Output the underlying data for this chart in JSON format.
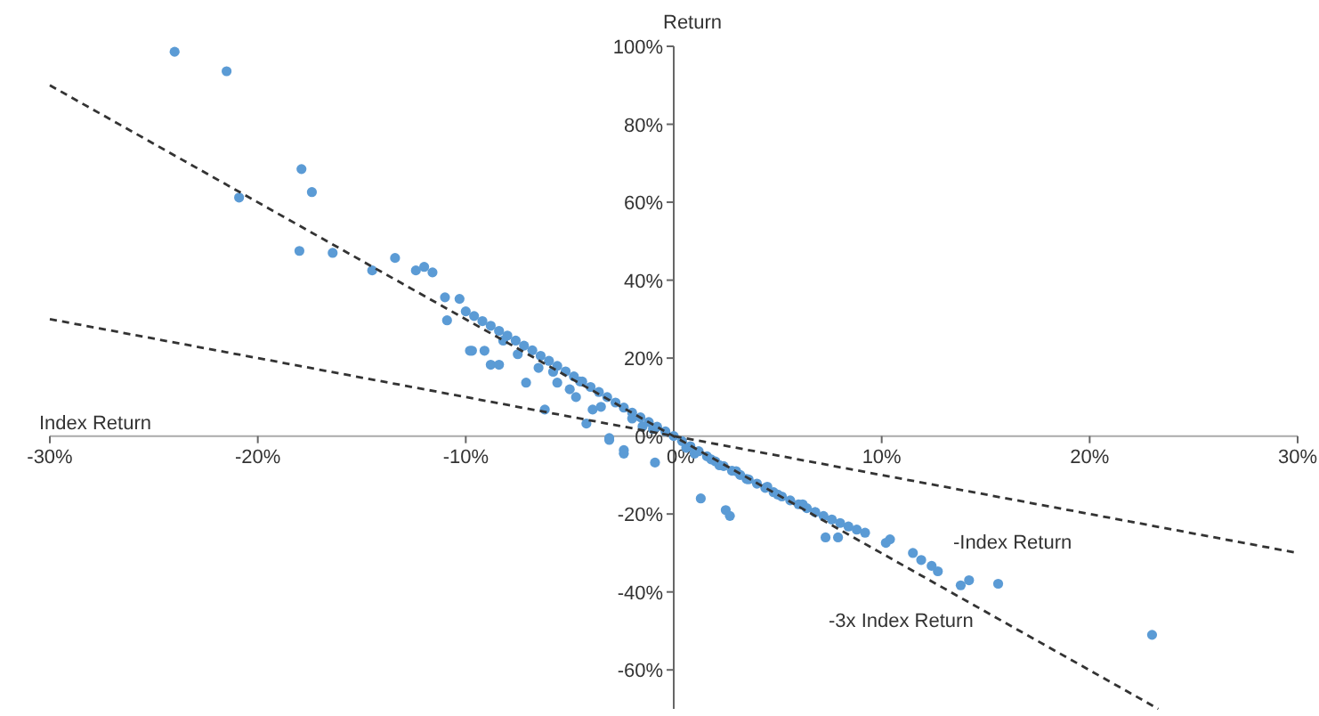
{
  "chart_data": {
    "type": "scatter",
    "xlabel": "Index Return",
    "ylabel": "Return",
    "xlim": [
      -30,
      30
    ],
    "ylim": [
      -70,
      100
    ],
    "xticks": [
      {
        "value": -30,
        "label": "-30%"
      },
      {
        "value": -20,
        "label": "-20%"
      },
      {
        "value": -10,
        "label": "-10%"
      },
      {
        "value": 0,
        "label": "0%"
      },
      {
        "value": 10,
        "label": "10%"
      },
      {
        "value": 20,
        "label": "20%"
      },
      {
        "value": 30,
        "label": "30%"
      }
    ],
    "yticks": [
      {
        "value": -60,
        "label": "-60%"
      },
      {
        "value": -40,
        "label": "-40%"
      },
      {
        "value": -20,
        "label": "-20%"
      },
      {
        "value": 0,
        "label": "0%"
      },
      {
        "value": 20,
        "label": "20%"
      },
      {
        "value": 40,
        "label": "40%"
      },
      {
        "value": 60,
        "label": "60%"
      },
      {
        "value": 80,
        "label": "80%"
      },
      {
        "value": 100,
        "label": "100%"
      }
    ],
    "grid": false,
    "marker": "circle",
    "series": [
      {
        "color": "#5b9bd5",
        "x": [
          -24.0,
          -21.5,
          -20.9,
          -17.9,
          -17.4,
          -18.0,
          -16.4,
          -14.5,
          -13.4,
          -12.4,
          -12.0,
          -11.6,
          -11.0,
          -10.3,
          -10.9,
          -9.7,
          -9.1,
          -8.8,
          -8.4,
          -7.1,
          -6.2,
          -9.8,
          -5.6,
          -4.7,
          -3.9,
          -4.2,
          -3.1,
          -2.4,
          -3.1,
          -2.4,
          -0.9,
          1.3,
          2.5,
          2.7,
          7.3,
          7.9,
          10.2,
          10.4,
          11.5,
          11.9,
          12.4,
          12.7,
          13.8,
          14.2,
          15.6,
          23.0,
          -10.0,
          -9.6,
          -9.2,
          -8.8,
          -8.4,
          -8.0,
          -7.6,
          -7.2,
          -6.8,
          -6.4,
          -6.0,
          -5.6,
          -5.2,
          -4.8,
          -4.4,
          -4.0,
          -3.6,
          -3.2,
          -2.8,
          -2.4,
          -2.0,
          -1.6,
          -1.2,
          -0.8,
          -0.4,
          0.0,
          0.4,
          0.8,
          1.2,
          1.6,
          2.0,
          2.4,
          2.8,
          3.2,
          3.6,
          4.0,
          4.4,
          4.8,
          5.2,
          5.6,
          6.0,
          6.4,
          6.8,
          7.2,
          7.6,
          8.0,
          8.4,
          8.8,
          9.2,
          -7.5,
          -6.5,
          -5.0,
          -3.5,
          -1.5,
          0.6,
          1.8,
          3.0,
          4.5,
          6.2,
          -8.2,
          -5.8,
          -4.5,
          -2.0,
          -1.0,
          1.0,
          2.2,
          3.5,
          5.0,
          6.8
        ],
        "values": [
          98.6,
          93.6,
          61.2,
          68.5,
          62.6,
          47.5,
          47.0,
          42.5,
          45.7,
          42.5,
          43.4,
          42.0,
          35.6,
          35.2,
          29.7,
          21.9,
          21.9,
          18.3,
          18.3,
          13.7,
          6.8,
          21.9,
          13.7,
          10.0,
          6.8,
          3.2,
          -0.5,
          -3.6,
          -1.0,
          -4.5,
          -6.8,
          -16.0,
          -19.0,
          -20.5,
          -26.0,
          -26.0,
          -27.4,
          -26.5,
          -30.0,
          -31.8,
          -33.3,
          -34.7,
          -38.3,
          -37.0,
          -37.9,
          -51.0,
          32.0,
          30.8,
          29.5,
          28.3,
          27.0,
          25.8,
          24.5,
          23.2,
          22.0,
          20.6,
          19.3,
          18.0,
          16.6,
          15.3,
          14.0,
          12.6,
          11.3,
          10.0,
          8.6,
          7.3,
          6.0,
          4.8,
          3.6,
          2.4,
          1.2,
          0.0,
          -1.3,
          -2.6,
          -3.9,
          -5.2,
          -6.5,
          -7.7,
          -8.9,
          -10.0,
          -11.1,
          -12.2,
          -13.3,
          -14.4,
          -15.5,
          -16.5,
          -17.5,
          -18.5,
          -19.5,
          -20.5,
          -21.4,
          -22.3,
          -23.2,
          -24.0,
          -24.8,
          21.0,
          17.5,
          12.0,
          7.5,
          2.5,
          -3.0,
          -6.0,
          -9.0,
          -13.0,
          -17.5,
          24.5,
          16.5,
          14.0,
          4.5,
          1.8,
          -4.5,
          -7.5,
          -11.0,
          -15.0,
          -19.5
        ]
      },
      {
        "type": "line",
        "name": "-3x Index Return",
        "color": "#333333",
        "line_style": "dashed",
        "marker": "none",
        "x": [
          -30,
          23.3
        ],
        "values": [
          90,
          -70
        ]
      },
      {
        "type": "line",
        "name": "-Index Return",
        "color": "#333333",
        "line_style": "dashed",
        "marker": "none",
        "x": [
          -30,
          30
        ],
        "values": [
          30,
          -30
        ]
      }
    ]
  }
}
